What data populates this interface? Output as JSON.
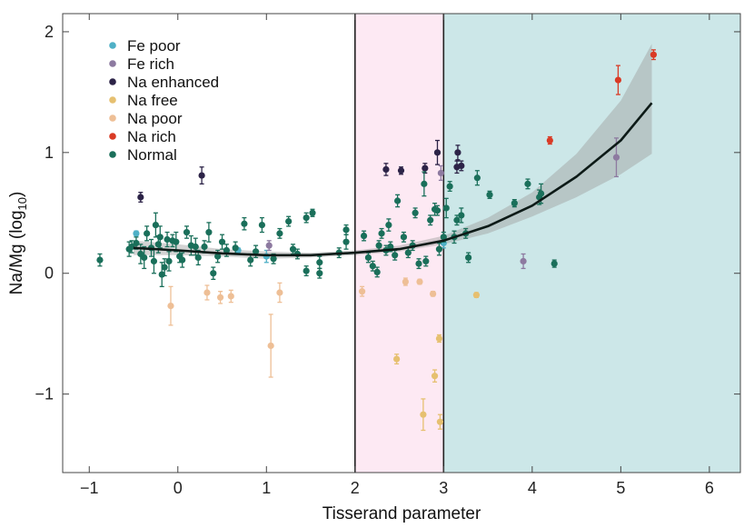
{
  "chart_data": {
    "type": "scatter",
    "xlabel": "Tisserand parameter",
    "ylabel_main": "Na/Mg (log",
    "ylabel_sub": "10",
    "ylabel_close": ")",
    "xlim": [
      -1.3,
      6.35
    ],
    "ylim": [
      -1.65,
      2.15
    ],
    "x_ticks": [
      -1,
      0,
      1,
      2,
      3,
      4,
      5,
      6
    ],
    "x_tick_labels": [
      "−1",
      "0",
      "1",
      "2",
      "3",
      "4",
      "5",
      "6"
    ],
    "y_ticks": [
      -1,
      0,
      1,
      2
    ],
    "y_tick_labels": [
      "−1",
      "0",
      "1",
      "2"
    ],
    "regions": [
      {
        "name": "pink-region",
        "x0": 2,
        "x1": 3,
        "color": "#fde9f3"
      },
      {
        "name": "teal-region",
        "x0": 3,
        "x1": 6.35,
        "color": "#cce7e8"
      }
    ],
    "vlines": [
      2,
      3
    ],
    "colors": {
      "Fe poor": "#4fb0c6",
      "Fe rich": "#8d7aa0",
      "Na enhanced": "#2c2347",
      "Na free": "#e6c070",
      "Na poor": "#eebf96",
      "Na rich": "#d93a25",
      "Normal": "#1a6f5a",
      "fit": "#0d1a17",
      "band": "#9e9e9e"
    },
    "legend": [
      "Fe poor",
      "Fe rich",
      "Na enhanced",
      "Na free",
      "Na poor",
      "Na rich",
      "Normal"
    ],
    "fit_curve": {
      "x": [
        -0.5,
        0.0,
        0.5,
        1.0,
        1.5,
        2.0,
        2.5,
        3.0,
        3.5,
        4.0,
        4.5,
        5.0,
        5.35
      ],
      "y": [
        0.21,
        0.19,
        0.165,
        0.15,
        0.15,
        0.17,
        0.2,
        0.27,
        0.39,
        0.56,
        0.8,
        1.1,
        1.41
      ],
      "lower": [
        0.15,
        0.15,
        0.14,
        0.12,
        0.13,
        0.15,
        0.18,
        0.24,
        0.33,
        0.47,
        0.63,
        0.82,
        0.99
      ],
      "upper": [
        0.27,
        0.24,
        0.2,
        0.18,
        0.17,
        0.19,
        0.23,
        0.31,
        0.46,
        0.67,
        0.99,
        1.43,
        1.9
      ]
    },
    "series": [
      {
        "name": "Fe poor",
        "points": [
          [
            -0.47,
            0.33,
            0.02
          ],
          [
            0.68,
            0.19,
            0.02
          ],
          [
            1.0,
            0.14,
            0.05
          ],
          [
            3.0,
            0.25,
            0.04
          ]
        ]
      },
      {
        "name": "Fe rich",
        "points": [
          [
            1.03,
            0.23,
            0.04
          ],
          [
            2.97,
            0.83,
            0.06
          ],
          [
            3.9,
            0.1,
            0.06
          ],
          [
            4.95,
            0.96,
            0.16
          ]
        ]
      },
      {
        "name": "Na enhanced",
        "points": [
          [
            -0.42,
            0.63,
            0.04
          ],
          [
            0.27,
            0.81,
            0.07
          ],
          [
            2.35,
            0.86,
            0.05
          ],
          [
            2.52,
            0.85,
            0.03
          ],
          [
            2.79,
            0.87,
            0.04
          ],
          [
            2.93,
            1.0,
            0.1
          ],
          [
            3.16,
            1.0,
            0.06
          ],
          [
            3.15,
            0.88,
            0.05
          ],
          [
            3.2,
            0.89,
            0.04
          ]
        ]
      },
      {
        "name": "Na free",
        "points": [
          [
            2.47,
            -0.71,
            0.04
          ],
          [
            2.77,
            -1.17,
            0.13
          ],
          [
            2.9,
            -0.85,
            0.05
          ],
          [
            2.96,
            -1.23,
            0.06
          ],
          [
            2.95,
            -0.54,
            0.03
          ],
          [
            3.37,
            -0.18,
            0.02
          ]
        ]
      },
      {
        "name": "Na poor",
        "points": [
          [
            -0.08,
            -0.27,
            0.16
          ],
          [
            0.33,
            -0.16,
            0.06
          ],
          [
            0.48,
            -0.2,
            0.05
          ],
          [
            0.6,
            -0.19,
            0.05
          ],
          [
            1.05,
            -0.6,
            0.26
          ],
          [
            1.15,
            -0.16,
            0.08
          ],
          [
            2.08,
            -0.15,
            0.04
          ],
          [
            2.57,
            -0.07,
            0.03
          ],
          [
            2.73,
            -0.07,
            0.02
          ],
          [
            2.88,
            -0.17,
            0.02
          ]
        ]
      },
      {
        "name": "Na rich",
        "points": [
          [
            4.2,
            1.1,
            0.03
          ],
          [
            4.97,
            1.6,
            0.12
          ],
          [
            5.37,
            1.81,
            0.04
          ]
        ]
      },
      {
        "name": "Normal",
        "points": [
          [
            -0.88,
            0.11,
            0.05
          ],
          [
            -0.55,
            0.2,
            0.06
          ],
          [
            -0.52,
            0.22,
            0.05
          ],
          [
            -0.47,
            0.25,
            0.05
          ],
          [
            -0.42,
            0.16,
            0.08
          ],
          [
            -0.38,
            0.13,
            0.09
          ],
          [
            -0.35,
            0.33,
            0.06
          ],
          [
            -0.3,
            0.21,
            0.07
          ],
          [
            -0.27,
            0.1,
            0.1
          ],
          [
            -0.25,
            0.4,
            0.1
          ],
          [
            -0.22,
            0.24,
            0.07
          ],
          [
            -0.2,
            0.3,
            0.09
          ],
          [
            -0.18,
            -0.01,
            0.1
          ],
          [
            -0.15,
            0.05,
            0.07
          ],
          [
            -0.12,
            0.28,
            0.06
          ],
          [
            -0.1,
            0.1,
            0.08
          ],
          [
            -0.06,
            0.27,
            0.05
          ],
          [
            -0.02,
            0.26,
            0.08
          ],
          [
            0.02,
            0.14,
            0.05
          ],
          [
            0.05,
            0.11,
            0.06
          ],
          [
            0.1,
            0.34,
            0.05
          ],
          [
            0.15,
            0.23,
            0.08
          ],
          [
            0.2,
            0.22,
            0.07
          ],
          [
            0.23,
            0.13,
            0.06
          ],
          [
            0.3,
            0.22,
            0.05
          ],
          [
            0.35,
            0.34,
            0.08
          ],
          [
            0.4,
            0.0,
            0.05
          ],
          [
            0.45,
            0.14,
            0.05
          ],
          [
            0.5,
            0.26,
            0.06
          ],
          [
            0.55,
            0.19,
            0.05
          ],
          [
            0.65,
            0.21,
            0.05
          ],
          [
            0.75,
            0.41,
            0.05
          ],
          [
            0.82,
            0.11,
            0.05
          ],
          [
            0.88,
            0.18,
            0.05
          ],
          [
            0.95,
            0.4,
            0.06
          ],
          [
            1.08,
            0.12,
            0.04
          ],
          [
            1.15,
            0.33,
            0.04
          ],
          [
            1.25,
            0.43,
            0.04
          ],
          [
            1.3,
            0.2,
            0.04
          ],
          [
            1.35,
            0.16,
            0.04
          ],
          [
            1.45,
            0.02,
            0.04
          ],
          [
            1.45,
            0.46,
            0.04
          ],
          [
            1.52,
            0.5,
            0.03
          ],
          [
            1.6,
            0.0,
            0.04
          ],
          [
            1.6,
            0.09,
            0.05
          ],
          [
            1.82,
            0.17,
            0.04
          ],
          [
            1.9,
            0.26,
            0.06
          ],
          [
            1.9,
            0.36,
            0.04
          ],
          [
            2.1,
            0.31,
            0.04
          ],
          [
            2.15,
            0.13,
            0.04
          ],
          [
            2.2,
            0.06,
            0.04
          ],
          [
            2.25,
            0.01,
            0.04
          ],
          [
            2.27,
            0.23,
            0.04
          ],
          [
            2.3,
            0.33,
            0.04
          ],
          [
            2.35,
            0.19,
            0.04
          ],
          [
            2.38,
            0.4,
            0.05
          ],
          [
            2.4,
            0.22,
            0.04
          ],
          [
            2.45,
            0.15,
            0.04
          ],
          [
            2.48,
            0.6,
            0.05
          ],
          [
            2.55,
            0.3,
            0.04
          ],
          [
            2.6,
            0.17,
            0.04
          ],
          [
            2.65,
            0.23,
            0.04
          ],
          [
            2.68,
            0.5,
            0.04
          ],
          [
            2.72,
            0.08,
            0.04
          ],
          [
            2.78,
            0.74,
            0.1
          ],
          [
            2.8,
            0.1,
            0.04
          ],
          [
            2.85,
            0.44,
            0.04
          ],
          [
            2.9,
            0.53,
            0.05
          ],
          [
            2.93,
            0.52,
            0.04
          ],
          [
            2.95,
            0.2,
            0.05
          ],
          [
            3.0,
            0.3,
            0.04
          ],
          [
            3.03,
            0.54,
            0.08
          ],
          [
            3.07,
            0.72,
            0.04
          ],
          [
            3.12,
            0.3,
            0.05
          ],
          [
            3.15,
            0.44,
            0.04
          ],
          [
            3.2,
            0.48,
            0.06
          ],
          [
            3.25,
            0.33,
            0.04
          ],
          [
            3.28,
            0.13,
            0.04
          ],
          [
            3.38,
            0.79,
            0.06
          ],
          [
            3.52,
            0.65,
            0.03
          ],
          [
            3.8,
            0.58,
            0.03
          ],
          [
            3.95,
            0.74,
            0.04
          ],
          [
            4.08,
            0.63,
            0.06
          ],
          [
            4.1,
            0.66,
            0.08
          ],
          [
            4.25,
            0.08,
            0.03
          ]
        ]
      }
    ]
  }
}
